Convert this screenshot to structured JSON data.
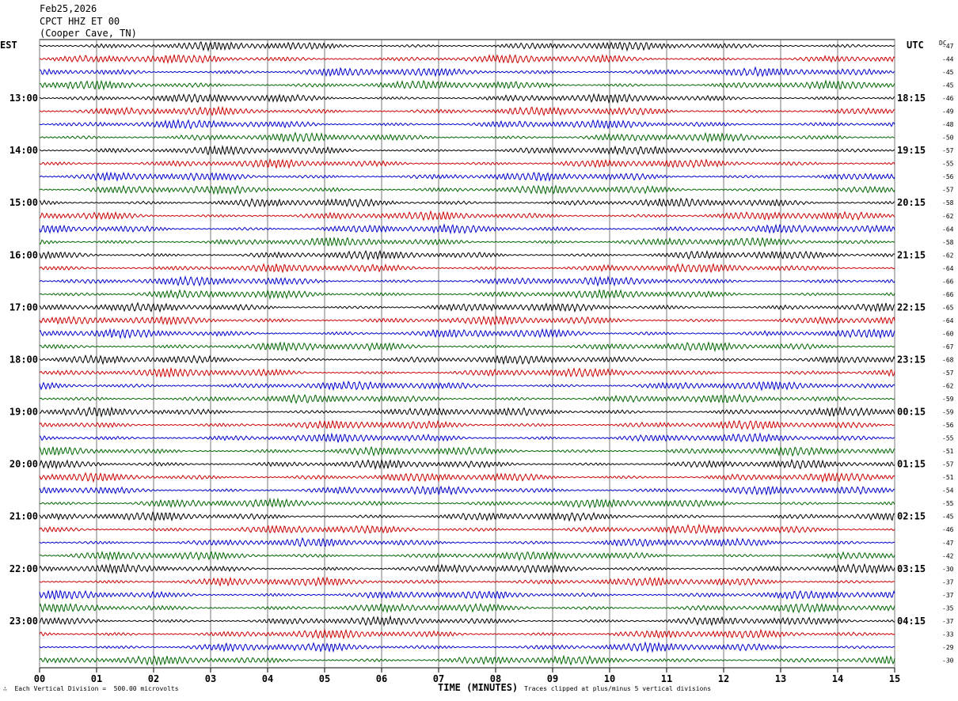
{
  "header": {
    "date": "Feb25,2026",
    "station": "CPCT HHZ ET 00",
    "location": "(Cooper Cave, TN)"
  },
  "footer": {
    "scale_note": "Each Vertical Division =  500.00 microvolts",
    "clip_note": "Traces clipped at plus/minus 5 vertical divisions"
  },
  "chart_data": {
    "type": "line",
    "left_axis_label": "EST",
    "right_axis_label": "UTC",
    "dc_label": "DC",
    "xlabel": "TIME (MINUTES)",
    "x_ticks": [
      "00",
      "01",
      "02",
      "03",
      "04",
      "05",
      "06",
      "07",
      "08",
      "09",
      "10",
      "11",
      "12",
      "13",
      "14",
      "15"
    ],
    "xlim": [
      0,
      15
    ],
    "trace_colors": [
      "#000000",
      "#cc0000",
      "#0000cc",
      "#006600"
    ],
    "traces_per_hour": 4,
    "hour_labels_est": [
      "13:00",
      "14:00",
      "15:00",
      "16:00",
      "17:00",
      "18:00",
      "19:00",
      "20:00",
      "21:00",
      "22:00",
      "23:00"
    ],
    "hour_labels_utc": [
      "18:15",
      "19:15",
      "20:15",
      "21:15",
      "22:15",
      "23:15",
      "00:15",
      "01:15",
      "02:15",
      "03:15",
      "04:15"
    ],
    "dc_offsets": [
      -47,
      -44,
      -45,
      -45,
      -46,
      -49,
      -48,
      -50,
      -57,
      -55,
      -56,
      -57,
      -58,
      -62,
      -64,
      -58,
      -62,
      -64,
      -66,
      -66,
      -65,
      -64,
      -60,
      -67,
      -68,
      -57,
      -62,
      -59,
      -59,
      -56,
      -55,
      -51,
      -57,
      -51,
      -54,
      -55,
      -45,
      -46,
      -47,
      -42,
      -30,
      -37,
      -37,
      -35,
      -37,
      -33,
      -29,
      -30
    ]
  }
}
